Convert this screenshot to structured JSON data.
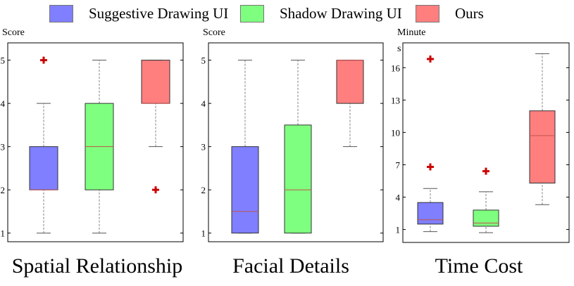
{
  "legend": {
    "items": [
      {
        "label": "Suggestive Drawing UI",
        "color": "#7f7fff"
      },
      {
        "label": "Shadow Drawing UI",
        "color": "#7fff7f"
      },
      {
        "label": "Ours",
        "color": "#ff7f7f"
      }
    ]
  },
  "colors": {
    "suggestive": "#7f7fff",
    "shadow": "#7fff7f",
    "ours": "#ff7f7f",
    "median": "#c0504d",
    "outlier": "#cc0000",
    "whisker": "#808080"
  },
  "chart_data": [
    {
      "type": "box",
      "title": "Spatial Relationship",
      "ylabel": "Score",
      "ylim": [
        0.8,
        5.4
      ],
      "yticks": [
        "1",
        "2",
        "3",
        "4",
        "5"
      ],
      "series": [
        {
          "name": "Suggestive Drawing UI",
          "min": 1,
          "q1": 2,
          "median": 2,
          "q3": 3,
          "max": 4,
          "outliers": [
            5
          ]
        },
        {
          "name": "Shadow Drawing UI",
          "min": 1,
          "q1": 2,
          "median": 3,
          "q3": 4,
          "max": 5,
          "outliers": []
        },
        {
          "name": "Ours",
          "min": 3,
          "q1": 4,
          "median": 4,
          "q3": 5,
          "max": 5,
          "outliers": [
            2
          ]
        }
      ]
    },
    {
      "type": "box",
      "title": "Facial Details",
      "ylabel": "Score",
      "ylim": [
        0.8,
        5.4
      ],
      "yticks": [
        "1",
        "2",
        "3",
        "4",
        "5"
      ],
      "series": [
        {
          "name": "Suggestive Drawing UI",
          "min": 1,
          "q1": 1,
          "median": 1.5,
          "q3": 3,
          "max": 5,
          "outliers": []
        },
        {
          "name": "Shadow Drawing UI",
          "min": 1,
          "q1": 1,
          "median": 2,
          "q3": 3.5,
          "max": 5,
          "outliers": []
        },
        {
          "name": "Ours",
          "min": 3,
          "q1": 4,
          "median": 5,
          "q3": 5,
          "max": 5,
          "outliers": []
        }
      ]
    },
    {
      "type": "box",
      "title": "Time Cost",
      "ylabel": "Minute\ns",
      "ylim": [
        -0.2,
        18.3
      ],
      "yticks": [
        "1",
        "4",
        "7",
        "10",
        "13",
        "16"
      ],
      "series": [
        {
          "name": "Suggestive Drawing UI",
          "min": 0.8,
          "q1": 1.5,
          "median": 1.9,
          "q3": 3.5,
          "max": 4.8,
          "outliers": [
            6.8,
            16.8
          ]
        },
        {
          "name": "Shadow Drawing UI",
          "min": 0.7,
          "q1": 1.3,
          "median": 1.6,
          "q3": 2.8,
          "max": 4.5,
          "outliers": [
            6.4
          ]
        },
        {
          "name": "Ours",
          "min": 3.3,
          "q1": 5.3,
          "median": 9.7,
          "q3": 12.0,
          "max": 17.3,
          "outliers": []
        }
      ]
    }
  ]
}
